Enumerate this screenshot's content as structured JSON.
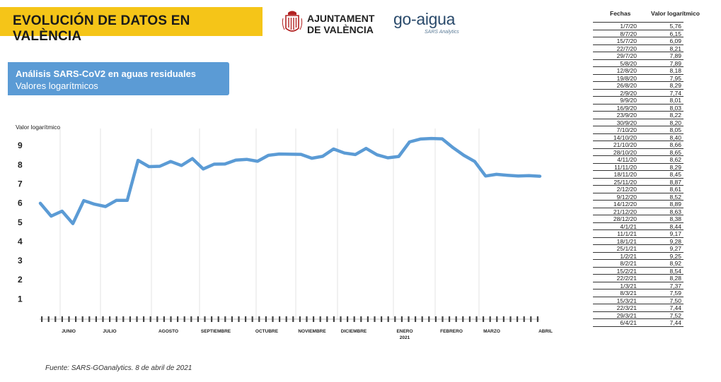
{
  "header": {
    "title": "EVOLUCIÓN DE DATOS EN VALÈNCIA",
    "logo_ajuntament_line1": "AJUNTAMENT",
    "logo_ajuntament_line2": "DE VALÈNCIA",
    "logo_goaigua": "go-aigua",
    "logo_goaigua_sub": "SARS Analytics"
  },
  "subtitle": {
    "line1": "Análisis SARS-CoV2 en aguas residuales",
    "line2": "Valores logarítmicos"
  },
  "source": "Fuente: SARS-GOanalytics. 8 de abril de 2021",
  "colors": {
    "banner": "#f5c518",
    "subtitle_box": "#5b9bd5",
    "series_line": "#5b9bd5"
  },
  "table": {
    "headers": [
      "Fechas",
      "Valor logarítmico"
    ],
    "rows": [
      [
        "1/7/20",
        "5,76"
      ],
      [
        "8/7/20",
        "6,15"
      ],
      [
        "15/7/20",
        "6,09"
      ],
      [
        "22/7/20",
        "8,21"
      ],
      [
        "29/7/20",
        "7,89"
      ],
      [
        "5/8/20",
        "7,89"
      ],
      [
        "12/8/20",
        "8,18"
      ],
      [
        "19/8/20",
        "7,95"
      ],
      [
        "26/8/20",
        "8,29"
      ],
      [
        "2/9/20",
        "7,74"
      ],
      [
        "9/9/20",
        "8,01"
      ],
      [
        "16/9/20",
        "8,03"
      ],
      [
        "23/9/20",
        "8,22"
      ],
      [
        "30/9/20",
        "8,20"
      ],
      [
        "7/10/20",
        "8,05"
      ],
      [
        "14/10/20",
        "8,40"
      ],
      [
        "21/10/20",
        "8,66"
      ],
      [
        "28/10/20",
        "8,65"
      ],
      [
        "4/11/20",
        "8,62"
      ],
      [
        "11/11/20",
        "8,29"
      ],
      [
        "18/11/20",
        "8,45"
      ],
      [
        "25/11/20",
        "8,87"
      ],
      [
        "2/12/20",
        "8,61"
      ],
      [
        "9/12/20",
        "8,52"
      ],
      [
        "14/12/20",
        "8,89"
      ],
      [
        "21/12/20",
        "8,63"
      ],
      [
        "28/12/20",
        "8,38"
      ],
      [
        "4/1/21",
        "8,44"
      ],
      [
        "11/1/21",
        "9,17"
      ],
      [
        "18/1/21",
        "9,28"
      ],
      [
        "25/1/21",
        "9,27"
      ],
      [
        "1/2/21",
        "9,25"
      ],
      [
        "8/2/21",
        "8,92"
      ],
      [
        "15/2/21",
        "8,54"
      ],
      [
        "22/2/21",
        "8,28"
      ],
      [
        "1/3/21",
        "7,37"
      ],
      [
        "8/3/21",
        "7,59"
      ],
      [
        "15/3/21",
        "7,50"
      ],
      [
        "22/3/21",
        "7,44"
      ],
      [
        "29/3/21",
        "7,52"
      ],
      [
        "6/4/21",
        "7,44"
      ]
    ]
  },
  "chart_data": {
    "type": "line",
    "title": "",
    "ylabel": "Valor logarítmico",
    "xlabel": "",
    "ylim": [
      0,
      9
    ],
    "yticks": [
      "9",
      "8",
      "7",
      "6",
      "5",
      "4",
      "3",
      "2",
      "1"
    ],
    "grid": "vertical month lines",
    "x_month_labels": [
      {
        "label": "JUNIO",
        "sub": ""
      },
      {
        "label": "JULIO",
        "sub": ""
      },
      {
        "label": "AGOSTO",
        "sub": ""
      },
      {
        "label": "SEPTIEMBRE",
        "sub": ""
      },
      {
        "label": "OCTUBRE",
        "sub": ""
      },
      {
        "label": "NOVIEMBRE",
        "sub": ""
      },
      {
        "label": "DICIEMBRE",
        "sub": ""
      },
      {
        "label": "ENERO",
        "sub": "2021"
      },
      {
        "label": "FEBRERO",
        "sub": ""
      },
      {
        "label": "MARZO",
        "sub": ""
      },
      {
        "label": "ABRIL",
        "sub": ""
      }
    ],
    "series": [
      {
        "values": [
          5.99,
          5.32,
          5.58,
          4.93,
          6.13,
          5.94,
          5.82,
          6.14,
          6.14,
          8.23,
          7.9,
          7.92,
          8.17,
          7.96,
          8.32,
          7.78,
          8.03,
          8.04,
          8.24,
          8.28,
          8.18,
          8.49,
          8.56,
          8.55,
          8.54,
          8.34,
          8.44,
          8.82,
          8.61,
          8.53,
          8.85,
          8.52,
          8.36,
          8.43,
          9.19,
          9.34,
          9.37,
          9.35,
          8.89,
          8.49,
          8.17,
          7.41,
          7.5,
          7.45,
          7.41,
          7.43,
          7.4
        ]
      }
    ]
  }
}
